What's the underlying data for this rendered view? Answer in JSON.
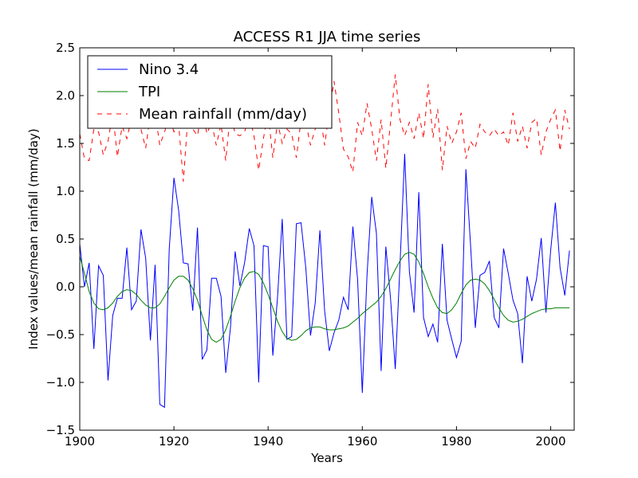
{
  "chart_data": {
    "type": "line",
    "title": "ACCESS R1 JJA time series",
    "xlabel": "Years",
    "ylabel": "Index values/mean rainfall (mm/day)",
    "xlim": [
      1900,
      2005
    ],
    "ylim": [
      -1.5,
      2.5
    ],
    "xticks": [
      1900,
      1920,
      1940,
      1960,
      1980,
      2000
    ],
    "xtick_labels": [
      "1900",
      "1920",
      "1940",
      "1960",
      "1980",
      "2000"
    ],
    "yticks": [
      -1.5,
      -1.0,
      -0.5,
      0.0,
      0.5,
      1.0,
      1.5,
      2.0,
      2.5
    ],
    "ytick_labels": [
      "−1.5",
      "−1.0",
      "−0.5",
      "0.0",
      "0.5",
      "1.0",
      "1.5",
      "2.0",
      "2.5"
    ],
    "grid": false,
    "legend_position": "top-left",
    "x": [
      1900,
      1901,
      1902,
      1903,
      1904,
      1905,
      1906,
      1907,
      1908,
      1909,
      1910,
      1911,
      1912,
      1913,
      1914,
      1915,
      1916,
      1917,
      1918,
      1919,
      1920,
      1921,
      1922,
      1923,
      1924,
      1925,
      1926,
      1927,
      1928,
      1929,
      1930,
      1931,
      1932,
      1933,
      1934,
      1935,
      1936,
      1937,
      1938,
      1939,
      1940,
      1941,
      1942,
      1943,
      1944,
      1945,
      1946,
      1947,
      1948,
      1949,
      1950,
      1951,
      1952,
      1953,
      1954,
      1955,
      1956,
      1957,
      1958,
      1959,
      1960,
      1961,
      1962,
      1963,
      1964,
      1965,
      1966,
      1967,
      1968,
      1969,
      1970,
      1971,
      1972,
      1973,
      1974,
      1975,
      1976,
      1977,
      1978,
      1979,
      1980,
      1981,
      1982,
      1983,
      1984,
      1985,
      1986,
      1987,
      1988,
      1989,
      1990,
      1991,
      1992,
      1993,
      1994,
      1995,
      1996,
      1997,
      1998,
      1999,
      2000,
      2001,
      2002,
      2003,
      2004
    ],
    "series": [
      {
        "name": "Nino 3.4",
        "color": "#0000ff",
        "dash": "solid",
        "values": [
          0.45,
          0.0,
          0.25,
          -0.65,
          0.22,
          0.12,
          -0.98,
          -0.3,
          -0.12,
          -0.12,
          0.41,
          -0.24,
          -0.15,
          0.6,
          0.3,
          -0.56,
          0.23,
          -1.23,
          -1.26,
          0.39,
          1.14,
          0.8,
          0.25,
          0.24,
          -0.25,
          0.62,
          -0.76,
          -0.66,
          0.09,
          0.09,
          -0.1,
          -0.9,
          -0.43,
          0.37,
          0.01,
          0.25,
          0.61,
          0.43,
          -1.0,
          0.43,
          0.42,
          -0.72,
          -0.11,
          0.71,
          -0.55,
          -0.52,
          0.66,
          0.67,
          0.2,
          -0.51,
          -0.17,
          0.59,
          -0.25,
          -0.67,
          -0.48,
          -0.35,
          -0.11,
          -0.24,
          0.63,
          0.08,
          -1.11,
          0.12,
          0.94,
          0.56,
          -0.88,
          0.42,
          -0.12,
          -0.86,
          0.22,
          1.39,
          0.16,
          -0.27,
          0.99,
          -0.32,
          -0.52,
          -0.39,
          -0.58,
          0.45,
          -0.35,
          -0.55,
          -0.74,
          -0.57,
          1.23,
          0.43,
          -0.43,
          0.12,
          0.15,
          0.27,
          -0.32,
          -0.43,
          0.4,
          0.14,
          -0.14,
          -0.28,
          -0.8,
          0.11,
          -0.15,
          0.08,
          0.51,
          -0.27,
          0.38,
          0.88,
          0.2,
          -0.09,
          0.38
        ]
      },
      {
        "name": "TPI",
        "color": "#008000",
        "dash": "solid",
        "values": [
          0.32,
          0.14,
          -0.05,
          -0.17,
          -0.23,
          -0.24,
          -0.22,
          -0.17,
          -0.1,
          -0.05,
          -0.03,
          -0.04,
          -0.08,
          -0.14,
          -0.19,
          -0.22,
          -0.22,
          -0.18,
          -0.1,
          -0.01,
          0.07,
          0.11,
          0.11,
          0.07,
          -0.02,
          -0.14,
          -0.3,
          -0.45,
          -0.55,
          -0.58,
          -0.55,
          -0.45,
          -0.31,
          -0.15,
          -0.01,
          0.09,
          0.15,
          0.16,
          0.13,
          0.04,
          -0.08,
          -0.22,
          -0.36,
          -0.47,
          -0.54,
          -0.56,
          -0.55,
          -0.51,
          -0.46,
          -0.43,
          -0.42,
          -0.42,
          -0.44,
          -0.45,
          -0.45,
          -0.44,
          -0.43,
          -0.41,
          -0.37,
          -0.33,
          -0.28,
          -0.24,
          -0.2,
          -0.16,
          -0.1,
          -0.02,
          0.08,
          0.18,
          0.27,
          0.34,
          0.36,
          0.34,
          0.26,
          0.14,
          0.0,
          -0.12,
          -0.22,
          -0.27,
          -0.28,
          -0.24,
          -0.17,
          -0.07,
          0.02,
          0.07,
          0.08,
          0.07,
          0.03,
          -0.04,
          -0.13,
          -0.22,
          -0.3,
          -0.35,
          -0.37,
          -0.36,
          -0.34,
          -0.31,
          -0.28,
          -0.26,
          -0.24,
          -0.23,
          -0.23,
          -0.22,
          -0.22,
          -0.22,
          -0.22
        ]
      },
      {
        "name": "Mean rainfall (mm/day)",
        "color": "#ff0000",
        "dash": "dashed",
        "values": [
          1.6,
          1.34,
          1.32,
          1.65,
          1.62,
          1.38,
          1.52,
          1.82,
          1.36,
          1.68,
          1.55,
          1.76,
          1.72,
          1.65,
          1.45,
          1.8,
          1.82,
          1.48,
          1.62,
          1.78,
          1.62,
          1.7,
          1.1,
          1.8,
          1.65,
          1.58,
          1.88,
          1.6,
          1.72,
          1.48,
          1.7,
          1.32,
          1.82,
          1.6,
          1.58,
          1.62,
          1.8,
          1.58,
          1.22,
          1.55,
          1.82,
          1.35,
          1.72,
          1.5,
          1.65,
          1.6,
          1.35,
          1.75,
          1.72,
          1.48,
          1.65,
          1.82,
          1.48,
          1.84,
          2.15,
          1.82,
          1.44,
          1.36,
          1.2,
          1.72,
          1.58,
          1.92,
          1.65,
          1.32,
          1.75,
          1.24,
          1.72,
          2.22,
          1.75,
          1.58,
          1.72,
          1.55,
          1.82,
          1.55,
          2.12,
          1.56,
          1.86,
          1.22,
          1.68,
          1.5,
          1.62,
          1.82,
          1.34,
          1.52,
          1.45,
          1.7,
          1.62,
          1.58,
          1.65,
          1.58,
          1.62,
          1.48,
          1.82,
          1.52,
          1.68,
          1.45,
          1.72,
          1.76,
          1.38,
          1.62,
          1.75,
          1.85,
          1.42,
          1.85,
          1.65
        ]
      }
    ]
  }
}
